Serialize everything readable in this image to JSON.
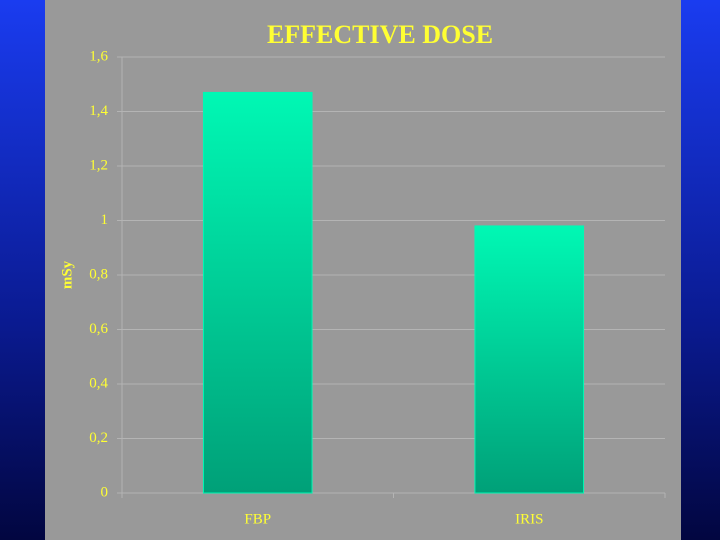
{
  "chart_data": {
    "type": "bar",
    "title": "EFFECTIVE DOSE",
    "y_label": "mSy",
    "categories": [
      "FBP",
      "IRIS"
    ],
    "values": [
      1.47,
      0.98
    ],
    "color": "#00f8b4",
    "ylim": [
      0,
      1.6
    ],
    "yticks": [
      0,
      {
        "value": 0.2,
        "label": "0,2"
      },
      {
        "value": 0.4,
        "label": "0,4"
      },
      {
        "value": 0.6,
        "label": "0,6"
      },
      {
        "value": 0.8,
        "label": "0,8"
      },
      1,
      {
        "value": 1.2,
        "label": "1,2"
      },
      {
        "value": 1.4,
        "label": "1,4"
      },
      {
        "value": 1.6,
        "label": "1,6"
      }
    ],
    "grid": true
  }
}
